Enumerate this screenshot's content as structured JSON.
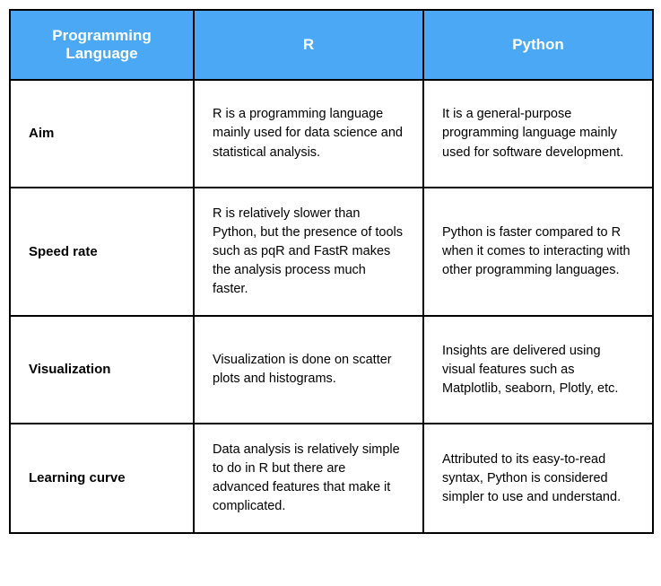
{
  "table": {
    "header_bg": "#4ba8f5",
    "header_fg": "#ffffff",
    "border_color": "#000000",
    "columns": [
      "Programming Language",
      "R",
      "Python"
    ],
    "rows": [
      {
        "label": "Aim",
        "r": "R is a programming language mainly used for data science and statistical analysis.",
        "python": "It is a general-purpose programming language mainly used for software development."
      },
      {
        "label": "Speed rate",
        "r": "R is relatively slower than Python, but the presence of tools such as pqR and FastR makes the analysis process much faster.",
        "python": "Python is faster compared to R when it comes to interacting with other programming languages."
      },
      {
        "label": "Visualization",
        "r": "Visualization is done on scatter plots and histograms.",
        "python": "Insights are delivered using visual features such as Matplotlib, seaborn, Plotly, etc."
      },
      {
        "label": "Learning curve",
        "r": "Data analysis is relatively simple to do in R but there are advanced features that make it complicated.",
        "python": "Attributed to its easy-to-read syntax, Python is considered simpler to use and understand."
      }
    ]
  }
}
